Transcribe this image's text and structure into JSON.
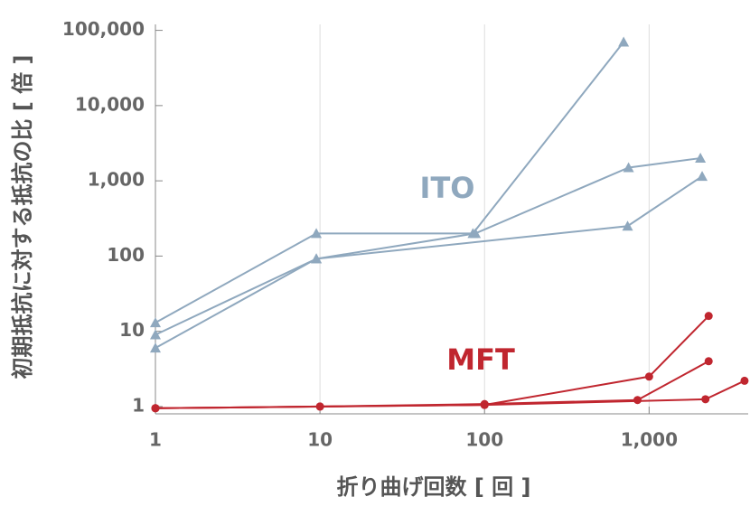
{
  "chart_data": {
    "type": "line",
    "xlabel": "折り曲げ回数 [ 回 ]",
    "ylabel": "初期抵抗に対する抵抗の比 [ 倍 ]",
    "xscale": "log",
    "yscale": "log",
    "grid": "x",
    "xlim": [
      1,
      4000
    ],
    "ylim": [
      0.8,
      120000
    ],
    "xticks": [
      1,
      10,
      100,
      {
        "value": 1000,
        "label": "1,000"
      }
    ],
    "yticks": [
      1,
      10,
      100,
      {
        "value": 1000,
        "label": "1,000"
      },
      {
        "value": 10000,
        "label": "10,000"
      },
      {
        "value": 100000,
        "label": "100,000"
      }
    ],
    "annotations": [
      {
        "text": "ITO",
        "color": "#8fa8be"
      },
      {
        "text": "MFT",
        "color": "#c0262f"
      }
    ],
    "series": [
      {
        "color": "#8fa8be",
        "marker": "triangle",
        "x": [
          1,
          9.5,
          85,
          700
        ],
        "values": [
          13,
          200,
          200,
          70000
        ]
      },
      {
        "color": "#8fa8be",
        "marker": "triangle",
        "x": [
          1,
          9.5,
          88,
          750,
          2050
        ],
        "values": [
          9,
          92,
          200,
          1500,
          2000
        ]
      },
      {
        "color": "#8fa8be",
        "marker": "triangle",
        "x": [
          1,
          9.5,
          740,
          2100
        ],
        "values": [
          6,
          92,
          250,
          1150
        ]
      },
      {
        "color": "#c0262f",
        "marker": "circle",
        "x": [
          1,
          10,
          100,
          1000,
          2300
        ],
        "values": [
          0.95,
          1.0,
          1.05,
          2.5,
          16
        ]
      },
      {
        "color": "#c0262f",
        "marker": "circle",
        "x": [
          1,
          10,
          100,
          850,
          2300
        ],
        "values": [
          0.95,
          1.0,
          1.08,
          1.22,
          4
        ]
      },
      {
        "color": "#c0262f",
        "marker": "circle",
        "x": [
          1,
          100,
          2200,
          3800
        ],
        "values": [
          0.95,
          1.05,
          1.25,
          2.2
        ]
      }
    ]
  }
}
